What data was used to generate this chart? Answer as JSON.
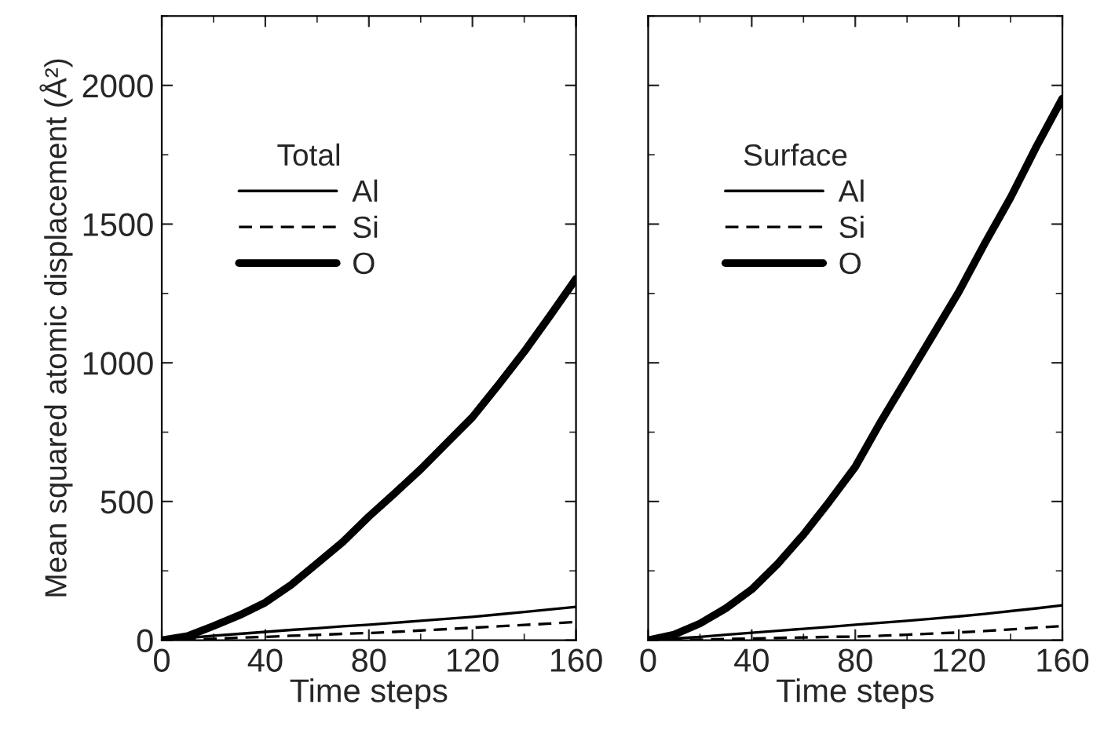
{
  "chart_data": [
    {
      "type": "line",
      "xlabel": "Time steps",
      "ylabel": "Mean squared atomic displacement (Å²)",
      "legend_title": "Total",
      "legend": "top left",
      "xlim": [
        0,
        160
      ],
      "xticks": [
        0,
        40,
        80,
        120,
        160
      ],
      "ylim": [
        0,
        2250
      ],
      "yticks": [
        0,
        500,
        1000,
        1500,
        2000
      ],
      "x": [
        0,
        10,
        20,
        30,
        40,
        50,
        60,
        70,
        80,
        90,
        100,
        110,
        120,
        130,
        140,
        150,
        160
      ],
      "series": [
        {
          "name": "Al",
          "color": "#000000",
          "line_style": "solid",
          "values": [
            0,
            8,
            16,
            23,
            30,
            37,
            43,
            50,
            56,
            63,
            70,
            77,
            84,
            93,
            102,
            111,
            120
          ]
        },
        {
          "name": "Si",
          "color": "#000000",
          "line_style": "dashed",
          "values": [
            0,
            2,
            5,
            9,
            12,
            16,
            19,
            23,
            26,
            30,
            35,
            40,
            45,
            50,
            55,
            60,
            66
          ]
        },
        {
          "name": "O",
          "color": "#000000",
          "line_style": "solid",
          "values": [
            0,
            15,
            51,
            90,
            136,
            200,
            277,
            355,
            446,
            530,
            616,
            710,
            804,
            920,
            1040,
            1170,
            1303
          ]
        }
      ]
    },
    {
      "type": "line",
      "xlabel": "Time steps",
      "legend_title": "Surface",
      "legend": "top left",
      "tick_labels": "x",
      "xlim": [
        0,
        160
      ],
      "xticks": [
        0,
        40,
        80,
        120,
        160
      ],
      "ylim": [
        0,
        2250
      ],
      "yticks": [
        0,
        500,
        1000,
        1500,
        2000
      ],
      "x": [
        0,
        10,
        20,
        30,
        40,
        50,
        60,
        70,
        80,
        90,
        100,
        110,
        120,
        130,
        140,
        150,
        160
      ],
      "series": [
        {
          "name": "Al",
          "color": "#000000",
          "line_style": "solid",
          "values": [
            0,
            6,
            12,
            20,
            27,
            34,
            41,
            48,
            56,
            63,
            70,
            78,
            86,
            95,
            105,
            115,
            126
          ]
        },
        {
          "name": "Si",
          "color": "#000000",
          "line_style": "dashed",
          "values": [
            0,
            1,
            2,
            4,
            6,
            8,
            10,
            12,
            13,
            16,
            20,
            24,
            28,
            33,
            39,
            45,
            51
          ]
        },
        {
          "name": "O",
          "color": "#000000",
          "line_style": "solid",
          "values": [
            0,
            20,
            60,
            115,
            183,
            275,
            381,
            500,
            625,
            790,
            945,
            1100,
            1256,
            1430,
            1596,
            1780,
            1953
          ]
        }
      ]
    }
  ]
}
